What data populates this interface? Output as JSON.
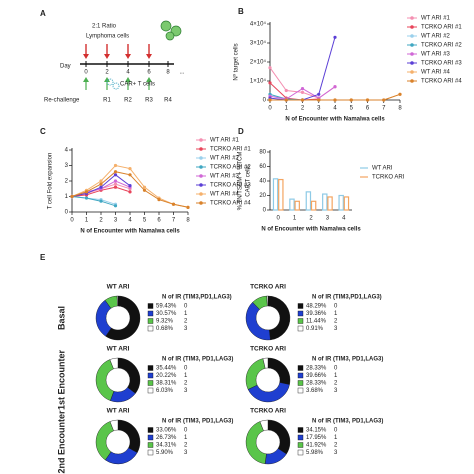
{
  "diagram": {
    "label": "A",
    "ratio": "2:1 Ratio",
    "target": "Lymphoma cells",
    "day_label": "Day",
    "days": [
      "0",
      "2",
      "4",
      "6",
      "8",
      "..."
    ],
    "effector": "CAR+ T cells",
    "rechallenge": "Re-challenge",
    "rounds": [
      "R1",
      "R2",
      "R3",
      "R4"
    ]
  },
  "panel_e": {
    "label": "E",
    "row_labels": [
      "Basal",
      "1st Encounter",
      "2nd Encounter"
    ]
  },
  "chart_data": [
    {
      "type": "line",
      "panel": "B",
      "y_label": [
        "Nº target cells"
      ],
      "x_label": "N of Encounter with Namalwa cells",
      "x": [
        0,
        1,
        2,
        3,
        4,
        5,
        6,
        7,
        8
      ],
      "xlim": [
        0,
        8
      ],
      "xticks": [
        0,
        1,
        2,
        3,
        4,
        5,
        6,
        7,
        8
      ],
      "ylim": [
        0,
        40000
      ],
      "yticks": [
        0,
        {
          "value": 10000,
          "label": "1×10⁴"
        },
        {
          "value": 20000,
          "label": "2×10⁴"
        },
        {
          "value": 30000,
          "label": "3×10⁴"
        },
        {
          "value": 40000,
          "label": "4×10⁴"
        }
      ],
      "series": [
        {
          "name": "WT ARI #1",
          "color": "#f48fb1",
          "values": [
            17000,
            5000,
            4000,
            1000,
            7000,
            null,
            null,
            null,
            null
          ]
        },
        {
          "name": "TCRKO ARI #1",
          "color": "#e8445a",
          "values": [
            9000,
            1000,
            0,
            500,
            null,
            null,
            null,
            null,
            null
          ]
        },
        {
          "name": "WT ARI #2",
          "color": "#9ad0ec",
          "values": [
            3000,
            0,
            0,
            0,
            null,
            null,
            null,
            null,
            null
          ]
        },
        {
          "name": "TCRKO ARI #2",
          "color": "#3fa7c2",
          "values": [
            3000,
            500,
            0,
            0,
            null,
            null,
            null,
            null,
            null
          ]
        },
        {
          "name": "WT ARI #3",
          "color": "#d067d6",
          "values": [
            2000,
            500,
            6000,
            1000,
            7000,
            null,
            null,
            null,
            null
          ]
        },
        {
          "name": "TCRKO ARI #3",
          "color": "#5b3fd6",
          "values": [
            1000,
            0,
            0,
            3000,
            33000,
            null,
            null,
            null,
            null
          ]
        },
        {
          "name": "WT ARI #4",
          "color": "#f5b06b",
          "values": [
            0,
            0,
            0,
            0,
            0,
            0,
            0,
            0,
            3000
          ]
        },
        {
          "name": "TCRKO ARI #4",
          "color": "#d9822b",
          "values": [
            0,
            0,
            0,
            0,
            0,
            0,
            0,
            0,
            3000
          ]
        }
      ]
    },
    {
      "type": "line",
      "panel": "C",
      "y_label": [
        "T cell Fold expansion"
      ],
      "x_label": "N of Encounter with Namalwa cells",
      "x": [
        0,
        1,
        2,
        3,
        4,
        5,
        6,
        7,
        8
      ],
      "xlim": [
        0,
        8
      ],
      "xticks": [
        0,
        1,
        2,
        3,
        4,
        5,
        6,
        7,
        8
      ],
      "ylim": [
        0,
        4
      ],
      "yticks": [
        0,
        1,
        2,
        3,
        4
      ],
      "series": [
        {
          "name": "WT ARI #1",
          "color": "#f48fb1",
          "values": [
            1,
            1.2,
            1.5,
            1.8,
            1.5,
            null,
            null,
            null,
            null
          ]
        },
        {
          "name": "TCRKO ARI #1",
          "color": "#e8445a",
          "values": [
            1,
            1.1,
            1.4,
            1.6,
            1.3,
            null,
            null,
            null,
            null
          ]
        },
        {
          "name": "WT ARI #2",
          "color": "#9ad0ec",
          "values": [
            1,
            0.9,
            0.8,
            0.5,
            null,
            null,
            null,
            null,
            null
          ]
        },
        {
          "name": "TCRKO ARI #2",
          "color": "#3fa7c2",
          "values": [
            1,
            0.9,
            0.7,
            0.4,
            null,
            null,
            null,
            null,
            null
          ]
        },
        {
          "name": "WT ARI #3",
          "color": "#d067d6",
          "values": [
            1,
            1.3,
            1.5,
            2.0,
            1.6,
            null,
            null,
            null,
            null
          ]
        },
        {
          "name": "TCRKO ARI #3",
          "color": "#5b3fd6",
          "values": [
            1,
            1.2,
            1.6,
            2.4,
            1.7,
            null,
            null,
            null,
            null
          ]
        },
        {
          "name": "WT ARI #4",
          "color": "#f5b06b",
          "values": [
            1,
            1.4,
            2.0,
            3.0,
            2.8,
            1.6,
            0.9,
            0.5,
            0.3
          ]
        },
        {
          "name": "TCRKO ARI #4",
          "color": "#d9822b",
          "values": [
            1,
            1.3,
            1.8,
            2.6,
            2.4,
            1.4,
            0.8,
            0.5,
            0.3
          ]
        }
      ]
    },
    {
      "type": "bar",
      "panel": "D",
      "y_label": [
        "% TN/TSCM + %TCM",
        "CAR T cells"
      ],
      "x_label": "N of Encounter with Namalwa cells",
      "categories": [
        "0",
        "1",
        "2",
        "3",
        "4"
      ],
      "ylim": [
        0,
        80
      ],
      "yticks": [
        0,
        20,
        40,
        60,
        80
      ],
      "series": [
        {
          "name": "WT ARI",
          "color": "#8ecae6",
          "values": [
            43,
            15,
            25,
            22,
            20
          ]
        },
        {
          "name": "TCRKO ARI",
          "color": "#f4a460",
          "values": [
            42,
            12,
            12,
            18,
            18
          ]
        }
      ]
    },
    {
      "type": "pie",
      "donut": true,
      "title": "WT ARI",
      "legend_title": "N of IR (TIM3,PD1,LAG3)",
      "categories": [
        "0",
        "1",
        "2",
        "3"
      ],
      "values": [
        59.43,
        30.57,
        9.32,
        0.68
      ],
      "value_labels": [
        "59.43%",
        "30.57%",
        "9.32%",
        "0.68%"
      ],
      "colors": [
        "#111111",
        "#1f3fd0",
        "#5ac54a",
        "#ffffff"
      ]
    },
    {
      "type": "pie",
      "donut": true,
      "title": "TCRKO ARI",
      "legend_title": "N of IR (TIM3,PD1,LAG3)",
      "categories": [
        "0",
        "1",
        "2",
        "3"
      ],
      "values": [
        48.29,
        39.36,
        11.44,
        0.91
      ],
      "value_labels": [
        "48.29%",
        "39.36%",
        "11.44%",
        "0.91%"
      ],
      "colors": [
        "#111111",
        "#1f3fd0",
        "#5ac54a",
        "#ffffff"
      ]
    },
    {
      "type": "pie",
      "donut": true,
      "title": "WT ARI",
      "legend_title": "N of IR (TIM3, PD1,LAG3)",
      "categories": [
        "0",
        "1",
        "2",
        "3"
      ],
      "values": [
        35.44,
        20.22,
        38.31,
        6.03
      ],
      "value_labels": [
        "35.44%",
        "20.22%",
        "38.31%",
        "6.03%"
      ],
      "colors": [
        "#111111",
        "#1f3fd0",
        "#5ac54a",
        "#ffffff"
      ]
    },
    {
      "type": "pie",
      "donut": true,
      "title": "TCRKO ARI",
      "legend_title": "N of IR (TIM3, PD1,LAG3)",
      "categories": [
        "0",
        "1",
        "2",
        "3"
      ],
      "values": [
        28.33,
        39.66,
        28.33,
        3.68
      ],
      "value_labels": [
        "28.33%",
        "39.66%",
        "28.33%",
        "3.68%"
      ],
      "colors": [
        "#111111",
        "#1f3fd0",
        "#5ac54a",
        "#ffffff"
      ]
    },
    {
      "type": "pie",
      "donut": true,
      "title": "WT ARI",
      "legend_title": "N of IR (TIM3, PD1,LAG3)",
      "categories": [
        "0",
        "1",
        "2",
        "3"
      ],
      "values": [
        33.06,
        26.73,
        34.31,
        5.9
      ],
      "value_labels": [
        "33.06%",
        "26.73%",
        "34.31%",
        "5.90%"
      ],
      "colors": [
        "#111111",
        "#1f3fd0",
        "#5ac54a",
        "#ffffff"
      ]
    },
    {
      "type": "pie",
      "donut": true,
      "title": "TCRKO ARI",
      "legend_title": "N of IR (TIM3, PD1,LAG3)",
      "categories": [
        "0",
        "1",
        "2",
        "3"
      ],
      "values": [
        34.15,
        17.95,
        41.92,
        5.98
      ],
      "value_labels": [
        "34.15%",
        "17.95%",
        "41.92%",
        "5.98%"
      ],
      "colors": [
        "#111111",
        "#1f3fd0",
        "#5ac54a",
        "#ffffff"
      ]
    }
  ]
}
